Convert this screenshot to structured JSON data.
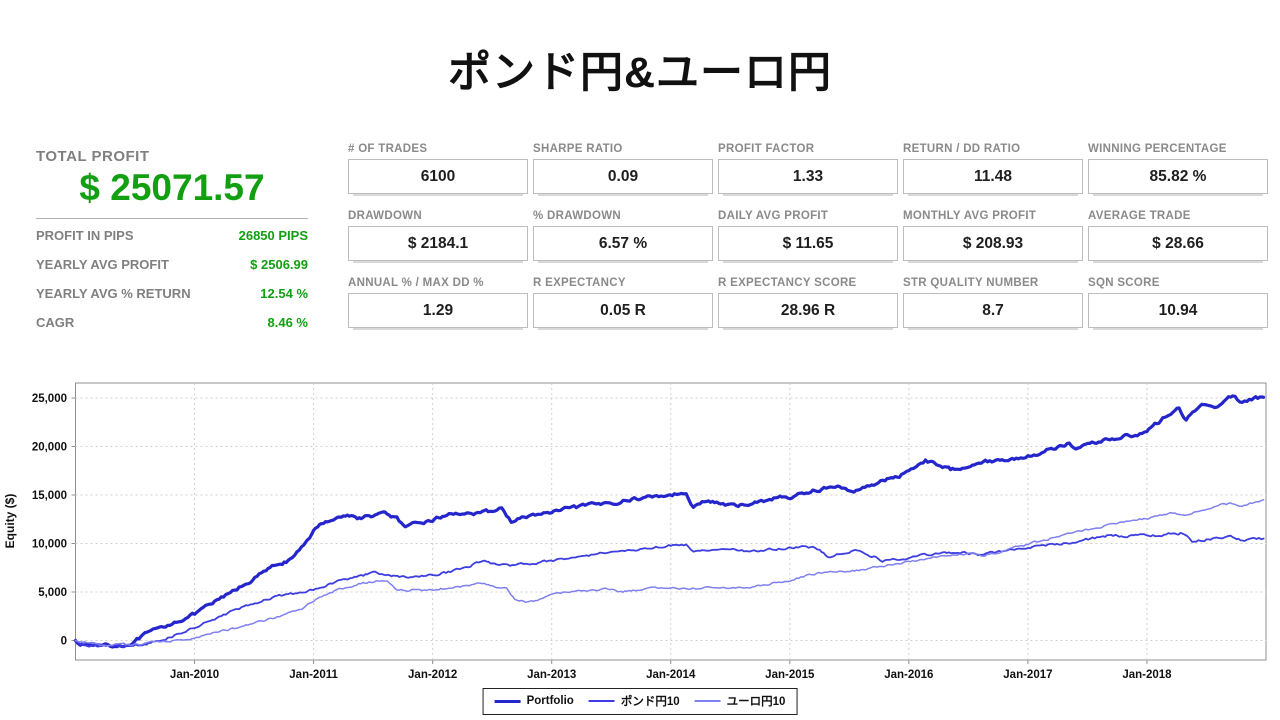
{
  "title": "ポンド円&ユーロ円",
  "summary": {
    "total_profit_label": "TOTAL PROFIT",
    "total_profit_value": "$ 25071.57",
    "rows": [
      {
        "label": "PROFIT IN PIPS",
        "value": "26850 PIPS"
      },
      {
        "label": "YEARLY AVG PROFIT",
        "value": "$ 2506.99"
      },
      {
        "label": "YEARLY AVG % RETURN",
        "value": "12.54 %"
      },
      {
        "label": "CAGR",
        "value": "8.46 %"
      }
    ]
  },
  "stats": [
    {
      "label": "# OF TRADES",
      "value": "6100"
    },
    {
      "label": "SHARPE RATIO",
      "value": "0.09"
    },
    {
      "label": "PROFIT FACTOR",
      "value": "1.33"
    },
    {
      "label": "RETURN / DD RATIO",
      "value": "11.48"
    },
    {
      "label": "WINNING PERCENTAGE",
      "value": "85.82 %"
    },
    {
      "label": "DRAWDOWN",
      "value": "$ 2184.1"
    },
    {
      "label": "% DRAWDOWN",
      "value": "6.57 %"
    },
    {
      "label": "DAILY AVG PROFIT",
      "value": "$ 11.65"
    },
    {
      "label": "MONTHLY AVG PROFIT",
      "value": "$ 208.93"
    },
    {
      "label": "AVERAGE TRADE",
      "value": "$ 28.66"
    },
    {
      "label": "ANNUAL % / MAX DD %",
      "value": "1.29"
    },
    {
      "label": "R EXPECTANCY",
      "value": "0.05 R"
    },
    {
      "label": "R EXPECTANCY SCORE",
      "value": "28.96 R"
    },
    {
      "label": "STR QUALITY NUMBER",
      "value": "8.7"
    },
    {
      "label": "SQN SCORE",
      "value": "10.94"
    }
  ],
  "colors": {
    "profit_green": "#12a012",
    "label_gray": "#808080",
    "grid_gray": "#d0d0d0",
    "axis_gray": "#909090"
  },
  "chart_data": {
    "type": "line",
    "ylabel": "Equity ($)",
    "x_range_years": [
      2009.0,
      2019.0
    ],
    "ylim": [
      -2000,
      26500
    ],
    "y_ticks": [
      0,
      5000,
      10000,
      15000,
      20000,
      25000
    ],
    "x_tick_years": [
      2010,
      2011,
      2012,
      2013,
      2014,
      2015,
      2016,
      2017,
      2018
    ],
    "x_tick_labels": [
      "Jan-2010",
      "Jan-2011",
      "Jan-2012",
      "Jan-2013",
      "Jan-2014",
      "Jan-2015",
      "Jan-2016",
      "Jan-2017",
      "Jan-2018"
    ],
    "grid": "dashed",
    "legend_position": "bottom-center",
    "legend": [
      "Portfolio",
      "ポンド円10",
      "ユーロ円10"
    ],
    "series": [
      {
        "name": "Portfolio",
        "color": "#2525cc",
        "width": 3.2,
        "noise": 300,
        "points": [
          [
            2009.0,
            0
          ],
          [
            2009.06,
            -350
          ],
          [
            2009.15,
            -550
          ],
          [
            2009.25,
            -350
          ],
          [
            2009.33,
            -520
          ],
          [
            2009.42,
            -480
          ],
          [
            2009.5,
            -100
          ],
          [
            2009.6,
            700
          ],
          [
            2009.7,
            1200
          ],
          [
            2009.85,
            2000
          ],
          [
            2010.0,
            2700
          ],
          [
            2010.15,
            3800
          ],
          [
            2010.3,
            4900
          ],
          [
            2010.45,
            6000
          ],
          [
            2010.6,
            7200
          ],
          [
            2010.72,
            8000
          ],
          [
            2010.82,
            8300
          ],
          [
            2010.9,
            9600
          ],
          [
            2011.0,
            11300
          ],
          [
            2011.1,
            12300
          ],
          [
            2011.2,
            12700
          ],
          [
            2011.3,
            12900
          ],
          [
            2011.4,
            12600
          ],
          [
            2011.5,
            12900
          ],
          [
            2011.6,
            13100
          ],
          [
            2011.7,
            12600
          ],
          [
            2011.77,
            11500
          ],
          [
            2011.85,
            12000
          ],
          [
            2012.0,
            12400
          ],
          [
            2012.1,
            12900
          ],
          [
            2012.25,
            13200
          ],
          [
            2012.4,
            13000
          ],
          [
            2012.5,
            13400
          ],
          [
            2012.58,
            13600
          ],
          [
            2012.66,
            12300
          ],
          [
            2012.75,
            12600
          ],
          [
            2012.88,
            13000
          ],
          [
            2013.0,
            13200
          ],
          [
            2013.15,
            13600
          ],
          [
            2013.3,
            13900
          ],
          [
            2013.45,
            14100
          ],
          [
            2013.6,
            14400
          ],
          [
            2013.75,
            14700
          ],
          [
            2013.9,
            14900
          ],
          [
            2014.05,
            15100
          ],
          [
            2014.13,
            15300
          ],
          [
            2014.19,
            13800
          ],
          [
            2014.3,
            14400
          ],
          [
            2014.42,
            14100
          ],
          [
            2014.55,
            13800
          ],
          [
            2014.65,
            14100
          ],
          [
            2014.78,
            14400
          ],
          [
            2014.9,
            14800
          ],
          [
            2015.0,
            14700
          ],
          [
            2015.12,
            15200
          ],
          [
            2015.25,
            15600
          ],
          [
            2015.4,
            15900
          ],
          [
            2015.52,
            15200
          ],
          [
            2015.65,
            16000
          ],
          [
            2015.8,
            16500
          ],
          [
            2015.92,
            17000
          ],
          [
            2016.0,
            17500
          ],
          [
            2016.08,
            18200
          ],
          [
            2016.14,
            18600
          ],
          [
            2016.25,
            18100
          ],
          [
            2016.35,
            17600
          ],
          [
            2016.45,
            17900
          ],
          [
            2016.55,
            18300
          ],
          [
            2016.68,
            18500
          ],
          [
            2016.8,
            18600
          ],
          [
            2016.92,
            18800
          ],
          [
            2017.0,
            19000
          ],
          [
            2017.12,
            19400
          ],
          [
            2017.25,
            20000
          ],
          [
            2017.33,
            20300
          ],
          [
            2017.42,
            19800
          ],
          [
            2017.52,
            20300
          ],
          [
            2017.65,
            20700
          ],
          [
            2017.8,
            21000
          ],
          [
            2017.92,
            21300
          ],
          [
            2018.0,
            21600
          ],
          [
            2018.1,
            22500
          ],
          [
            2018.2,
            23500
          ],
          [
            2018.27,
            24000
          ],
          [
            2018.33,
            22700
          ],
          [
            2018.42,
            23900
          ],
          [
            2018.5,
            24400
          ],
          [
            2018.57,
            23900
          ],
          [
            2018.65,
            24800
          ],
          [
            2018.72,
            25300
          ],
          [
            2018.8,
            24500
          ],
          [
            2018.88,
            24900
          ],
          [
            2018.98,
            25071
          ]
        ]
      },
      {
        "name": "ポンド円10",
        "color": "#3d3de0",
        "width": 1.8,
        "noise": 220,
        "points": [
          [
            2009.0,
            0
          ],
          [
            2009.08,
            -450
          ],
          [
            2009.2,
            -650
          ],
          [
            2009.33,
            -500
          ],
          [
            2009.45,
            -600
          ],
          [
            2009.58,
            -350
          ],
          [
            2009.7,
            -100
          ],
          [
            2009.85,
            600
          ],
          [
            2010.0,
            1350
          ],
          [
            2010.15,
            2100
          ],
          [
            2010.3,
            2900
          ],
          [
            2010.45,
            3600
          ],
          [
            2010.6,
            4300
          ],
          [
            2010.75,
            4700
          ],
          [
            2010.9,
            5000
          ],
          [
            2011.0,
            5300
          ],
          [
            2011.12,
            5800
          ],
          [
            2011.25,
            6200
          ],
          [
            2011.4,
            6700
          ],
          [
            2011.52,
            7000
          ],
          [
            2011.62,
            6800
          ],
          [
            2011.72,
            6500
          ],
          [
            2011.85,
            6600
          ],
          [
            2012.0,
            6700
          ],
          [
            2012.15,
            7100
          ],
          [
            2012.3,
            7600
          ],
          [
            2012.42,
            8200
          ],
          [
            2012.52,
            7900
          ],
          [
            2012.65,
            7700
          ],
          [
            2012.8,
            7900
          ],
          [
            2012.92,
            8100
          ],
          [
            2013.05,
            8300
          ],
          [
            2013.2,
            8600
          ],
          [
            2013.35,
            8900
          ],
          [
            2013.5,
            9100
          ],
          [
            2013.65,
            9300
          ],
          [
            2013.8,
            9550
          ],
          [
            2013.95,
            9750
          ],
          [
            2014.05,
            9850
          ],
          [
            2014.13,
            9900
          ],
          [
            2014.19,
            9200
          ],
          [
            2014.32,
            9350
          ],
          [
            2014.45,
            9500
          ],
          [
            2014.58,
            9300
          ],
          [
            2014.7,
            9200
          ],
          [
            2014.85,
            9400
          ],
          [
            2015.0,
            9500
          ],
          [
            2015.12,
            9700
          ],
          [
            2015.25,
            9400
          ],
          [
            2015.32,
            8700
          ],
          [
            2015.45,
            9000
          ],
          [
            2015.55,
            9300
          ],
          [
            2015.65,
            9000
          ],
          [
            2015.78,
            8200
          ],
          [
            2015.9,
            8400
          ],
          [
            2016.0,
            8500
          ],
          [
            2016.15,
            8800
          ],
          [
            2016.3,
            9000
          ],
          [
            2016.45,
            9100
          ],
          [
            2016.58,
            8900
          ],
          [
            2016.7,
            9100
          ],
          [
            2016.85,
            9300
          ],
          [
            2017.0,
            9500
          ],
          [
            2017.15,
            9800
          ],
          [
            2017.3,
            10000
          ],
          [
            2017.45,
            10300
          ],
          [
            2017.58,
            10600
          ],
          [
            2017.7,
            10900
          ],
          [
            2017.8,
            10700
          ],
          [
            2017.92,
            10800
          ],
          [
            2018.05,
            10800
          ],
          [
            2018.18,
            11000
          ],
          [
            2018.3,
            11100
          ],
          [
            2018.38,
            10200
          ],
          [
            2018.5,
            10400
          ],
          [
            2018.62,
            10600
          ],
          [
            2018.72,
            10650
          ],
          [
            2018.82,
            10300
          ],
          [
            2018.9,
            10400
          ],
          [
            2018.98,
            10500
          ]
        ]
      },
      {
        "name": "ユーロ円10",
        "color": "#8080f0",
        "width": 1.5,
        "noise": 190,
        "points": [
          [
            2009.0,
            0
          ],
          [
            2009.1,
            -300
          ],
          [
            2009.22,
            -480
          ],
          [
            2009.35,
            -380
          ],
          [
            2009.48,
            -450
          ],
          [
            2009.6,
            -280
          ],
          [
            2009.72,
            -180
          ],
          [
            2009.85,
            0
          ],
          [
            2010.0,
            260
          ],
          [
            2010.15,
            700
          ],
          [
            2010.3,
            1150
          ],
          [
            2010.45,
            1600
          ],
          [
            2010.6,
            2100
          ],
          [
            2010.75,
            2600
          ],
          [
            2010.9,
            3300
          ],
          [
            2011.0,
            4100
          ],
          [
            2011.12,
            4900
          ],
          [
            2011.25,
            5400
          ],
          [
            2011.38,
            5800
          ],
          [
            2011.5,
            6100
          ],
          [
            2011.62,
            6200
          ],
          [
            2011.7,
            5300
          ],
          [
            2011.82,
            5200
          ],
          [
            2012.0,
            5200
          ],
          [
            2012.12,
            5400
          ],
          [
            2012.25,
            5600
          ],
          [
            2012.4,
            5900
          ],
          [
            2012.52,
            5500
          ],
          [
            2012.62,
            5300
          ],
          [
            2012.69,
            4300
          ],
          [
            2012.78,
            4000
          ],
          [
            2012.88,
            4100
          ],
          [
            2013.0,
            4800
          ],
          [
            2013.15,
            5050
          ],
          [
            2013.3,
            5200
          ],
          [
            2013.45,
            5300
          ],
          [
            2013.58,
            5050
          ],
          [
            2013.72,
            5150
          ],
          [
            2013.85,
            5350
          ],
          [
            2014.0,
            5500
          ],
          [
            2014.15,
            5300
          ],
          [
            2014.3,
            5400
          ],
          [
            2014.45,
            5500
          ],
          [
            2014.58,
            5350
          ],
          [
            2014.72,
            5600
          ],
          [
            2014.85,
            5900
          ],
          [
            2015.0,
            6200
          ],
          [
            2015.15,
            6700
          ],
          [
            2015.3,
            7000
          ],
          [
            2015.45,
            7150
          ],
          [
            2015.6,
            7300
          ],
          [
            2015.75,
            7600
          ],
          [
            2015.9,
            7950
          ],
          [
            2016.05,
            8250
          ],
          [
            2016.2,
            8500
          ],
          [
            2016.35,
            8800
          ],
          [
            2016.5,
            8950
          ],
          [
            2016.62,
            8750
          ],
          [
            2016.75,
            9050
          ],
          [
            2016.88,
            9500
          ],
          [
            2017.0,
            9900
          ],
          [
            2017.15,
            10400
          ],
          [
            2017.3,
            10900
          ],
          [
            2017.45,
            11300
          ],
          [
            2017.6,
            11700
          ],
          [
            2017.75,
            12100
          ],
          [
            2017.9,
            12400
          ],
          [
            2018.05,
            12700
          ],
          [
            2018.2,
            13200
          ],
          [
            2018.32,
            13000
          ],
          [
            2018.45,
            13500
          ],
          [
            2018.58,
            13900
          ],
          [
            2018.7,
            14100
          ],
          [
            2018.8,
            13850
          ],
          [
            2018.9,
            14200
          ],
          [
            2018.98,
            14500
          ]
        ]
      }
    ]
  }
}
